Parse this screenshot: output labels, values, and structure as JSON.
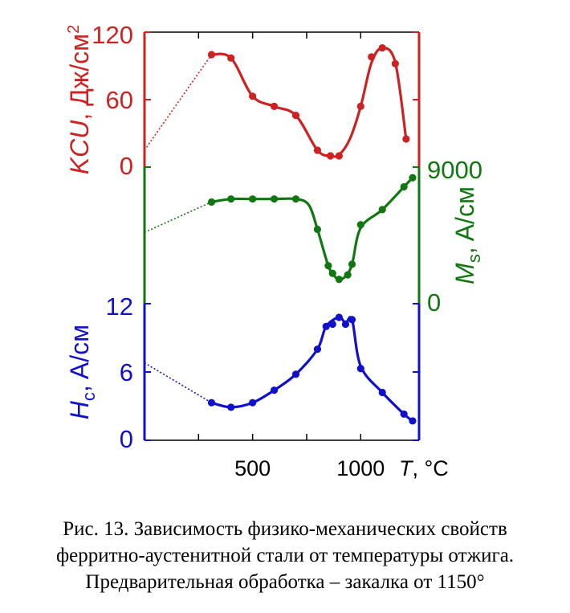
{
  "chart_data": {
    "type": "line",
    "x_axis": {
      "ticks": [
        500,
        1000
      ],
      "tick_labels": [
        "500",
        "1000"
      ],
      "label_italic": "T",
      "label_rest": ", °C",
      "range": [
        0,
        1270
      ],
      "minor_ticks": [
        250,
        500,
        750,
        1000
      ]
    },
    "panels": [
      {
        "id": "kcu",
        "color": "#cc2222",
        "axis_side": "left",
        "ylim": [
          0,
          120
        ],
        "ticks": [
          0,
          60,
          120
        ],
        "tick_labels": [
          "0",
          "60",
          "120"
        ],
        "label_italic": "KCU",
        "label_rest": ", Дж/см",
        "label_sup": "2",
        "extrapolation": {
          "from": [
            0,
            15
          ],
          "to": [
            310,
            100
          ]
        },
        "points": [
          [
            310,
            100
          ],
          [
            400,
            97
          ],
          [
            500,
            63
          ],
          [
            600,
            54
          ],
          [
            700,
            46
          ],
          [
            800,
            15
          ],
          [
            860,
            10
          ],
          [
            900,
            10
          ],
          [
            1000,
            54
          ],
          [
            1050,
            98
          ],
          [
            1100,
            106
          ],
          [
            1160,
            92
          ],
          [
            1210,
            25
          ]
        ],
        "curve": [
          [
            310,
            100
          ],
          [
            400,
            97
          ],
          [
            500,
            63
          ],
          [
            600,
            54
          ],
          [
            700,
            46
          ],
          [
            800,
            15
          ],
          [
            860,
            10
          ],
          [
            900,
            11
          ],
          [
            950,
            25
          ],
          [
            1000,
            54
          ],
          [
            1050,
            93
          ],
          [
            1100,
            106
          ],
          [
            1160,
            93
          ],
          [
            1210,
            25
          ]
        ]
      },
      {
        "id": "ms",
        "color": "#117711",
        "axis_side": "right",
        "ylim": [
          0,
          9000
        ],
        "ticks": [
          0,
          9000
        ],
        "tick_labels": [
          "0",
          "9000"
        ],
        "label_italic": "M",
        "label_sub": "s",
        "label_rest": ", A/см",
        "extrapolation": {
          "from": [
            0,
            4700
          ],
          "to": [
            310,
            6700
          ]
        },
        "points": [
          [
            310,
            6700
          ],
          [
            400,
            6900
          ],
          [
            500,
            6900
          ],
          [
            600,
            6900
          ],
          [
            700,
            6900
          ],
          [
            800,
            4900
          ],
          [
            850,
            2500
          ],
          [
            870,
            2000
          ],
          [
            900,
            1600
          ],
          [
            940,
            1900
          ],
          [
            960,
            2600
          ],
          [
            1000,
            5200
          ],
          [
            1100,
            6200
          ],
          [
            1200,
            7700
          ],
          [
            1240,
            8300
          ]
        ],
        "curve": [
          [
            310,
            6700
          ],
          [
            400,
            6900
          ],
          [
            500,
            6900
          ],
          [
            600,
            6900
          ],
          [
            700,
            6900
          ],
          [
            760,
            6500
          ],
          [
            800,
            4900
          ],
          [
            850,
            2500
          ],
          [
            880,
            1800
          ],
          [
            900,
            1600
          ],
          [
            930,
            1800
          ],
          [
            960,
            2600
          ],
          [
            1000,
            5000
          ],
          [
            1100,
            6200
          ],
          [
            1200,
            7700
          ],
          [
            1240,
            8300
          ]
        ]
      },
      {
        "id": "hc",
        "color": "#1111cc",
        "axis_side": "left",
        "ylim": [
          0,
          12
        ],
        "ticks": [
          0,
          6,
          12
        ],
        "tick_labels": [
          "0",
          "6",
          "12"
        ],
        "label_italic": "H",
        "label_sub": "c",
        "label_rest": ", A/см",
        "extrapolation": {
          "from": [
            0,
            6.8
          ],
          "to": [
            310,
            3.3
          ]
        },
        "points": [
          [
            310,
            3.3
          ],
          [
            400,
            2.9
          ],
          [
            500,
            3.3
          ],
          [
            600,
            4.4
          ],
          [
            700,
            5.8
          ],
          [
            800,
            8.0
          ],
          [
            840,
            10.0
          ],
          [
            870,
            10.2
          ],
          [
            900,
            10.8
          ],
          [
            930,
            10.2
          ],
          [
            960,
            10.6
          ],
          [
            1000,
            6.3
          ],
          [
            1100,
            4.2
          ],
          [
            1200,
            2.3
          ],
          [
            1240,
            1.7
          ]
        ],
        "curve": [
          [
            310,
            3.3
          ],
          [
            400,
            2.9
          ],
          [
            500,
            3.3
          ],
          [
            600,
            4.4
          ],
          [
            700,
            5.8
          ],
          [
            800,
            8.0
          ],
          [
            840,
            10.0
          ],
          [
            900,
            10.8
          ],
          [
            930,
            10.3
          ],
          [
            960,
            10.6
          ],
          [
            1000,
            6.5
          ],
          [
            1100,
            4.2
          ],
          [
            1200,
            2.3
          ],
          [
            1240,
            1.7
          ]
        ]
      }
    ]
  },
  "caption": {
    "line1": "Рис. 13. Зависимость физико-механических свойств",
    "line2": "ферритно-аустенитной стали от температуры отжига.",
    "line3": "Предварительная обработка – закалка от 1150°"
  }
}
